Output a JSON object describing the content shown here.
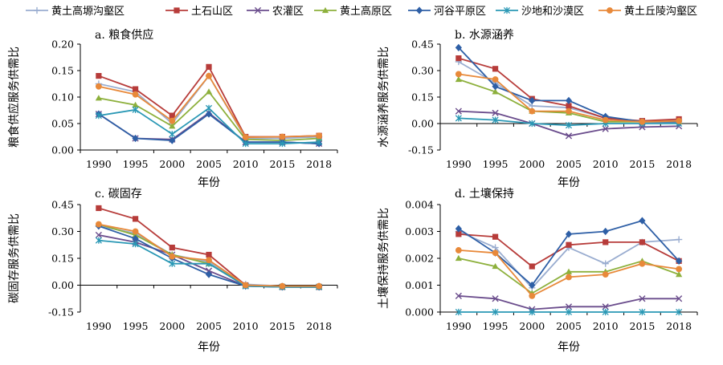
{
  "legend": [
    {
      "name": "黄土高塬沟壑区",
      "color": "#9aadd0",
      "marker": "plus"
    },
    {
      "name": "土石山区",
      "color": "#b73c3a",
      "marker": "square"
    },
    {
      "name": "农灌区",
      "color": "#6a4c8c",
      "marker": "x"
    },
    {
      "name": "黄土高原区",
      "color": "#8db03c",
      "marker": "triangle"
    },
    {
      "name": "河谷平原区",
      "color": "#2e5fa6",
      "marker": "diamond"
    },
    {
      "name": "沙地和沙漠区",
      "color": "#2a98b5",
      "marker": "star"
    },
    {
      "name": "黄土丘陵沟壑区",
      "color": "#e8893a",
      "marker": "circle"
    }
  ],
  "chart_data": [
    {
      "type": "line",
      "title": "a. 粮食供应",
      "xlabel": "年份",
      "ylabel": "粮食供应服务供需比",
      "x": [
        "1990",
        "1995",
        "2000",
        "2005",
        "2010",
        "2015",
        "2018"
      ],
      "ylim": [
        0,
        0.2
      ],
      "yticks": [
        "0.00",
        "0.05",
        "0.10",
        "0.15",
        "0.20"
      ],
      "series": [
        {
          "name": "黄土高塬沟壑区",
          "values": [
            0.125,
            0.11,
            0.05,
            0.14,
            0.022,
            0.022,
            0.025
          ]
        },
        {
          "name": "土石山区",
          "values": [
            0.14,
            0.115,
            0.065,
            0.157,
            0.025,
            0.025,
            0.027
          ]
        },
        {
          "name": "农灌区",
          "values": [
            0.068,
            0.022,
            0.02,
            0.07,
            0.015,
            0.015,
            0.012
          ]
        },
        {
          "name": "黄土高原区",
          "values": [
            0.098,
            0.085,
            0.045,
            0.11,
            0.02,
            0.018,
            0.022
          ]
        },
        {
          "name": "河谷平原区",
          "values": [
            0.068,
            0.022,
            0.018,
            0.068,
            0.015,
            0.015,
            0.012
          ]
        },
        {
          "name": "沙地和沙漠区",
          "values": [
            0.065,
            0.076,
            0.03,
            0.079,
            0.012,
            0.012,
            0.015
          ]
        },
        {
          "name": "黄土丘陵沟壑区",
          "values": [
            0.12,
            0.105,
            0.055,
            0.14,
            0.024,
            0.025,
            0.027
          ]
        }
      ]
    },
    {
      "type": "line",
      "title": "b. 水源涵养",
      "xlabel": "年份",
      "ylabel": "水源涵养服务供需比",
      "x": [
        "1990",
        "1995",
        "2000",
        "2005",
        "2010",
        "2015",
        "2018"
      ],
      "ylim": [
        -0.15,
        0.45
      ],
      "yticks": [
        "-0.15",
        "0.00",
        "0.15",
        "0.30",
        "0.45"
      ],
      "series": [
        {
          "name": "黄土高塬沟壑区",
          "values": [
            0.35,
            0.23,
            0.1,
            0.09,
            0.03,
            0.01,
            0.02
          ]
        },
        {
          "name": "土石山区",
          "values": [
            0.37,
            0.31,
            0.14,
            0.1,
            0.03,
            0.015,
            0.025
          ]
        },
        {
          "name": "农灌区",
          "values": [
            0.07,
            0.06,
            0.0,
            -0.07,
            -0.03,
            -0.02,
            -0.015
          ]
        },
        {
          "name": "黄土高原区",
          "values": [
            0.25,
            0.18,
            0.07,
            0.06,
            0.01,
            0.01,
            0.01
          ]
        },
        {
          "name": "河谷平原区",
          "values": [
            0.43,
            0.21,
            0.13,
            0.13,
            0.04,
            0.01,
            0.01
          ]
        },
        {
          "name": "沙地和沙漠区",
          "values": [
            0.03,
            0.02,
            0.0,
            -0.01,
            0.0,
            0.0,
            0.0
          ]
        },
        {
          "name": "黄土丘陵沟壑区",
          "values": [
            0.28,
            0.25,
            0.07,
            0.07,
            0.02,
            0.01,
            0.015
          ]
        }
      ]
    },
    {
      "type": "line",
      "title": "c. 碳固存",
      "xlabel": "年份",
      "ylabel": "碳固存服务供需比",
      "x": [
        "1990",
        "1995",
        "2000",
        "2005",
        "2010",
        "2015",
        "2018"
      ],
      "ylim": [
        -0.15,
        0.45
      ],
      "yticks": [
        "-0.15",
        "0.00",
        "0.15",
        "0.30",
        "0.45"
      ],
      "series": [
        {
          "name": "黄土高塬沟壑区",
          "values": [
            0.33,
            0.29,
            0.17,
            0.13,
            0.005,
            -0.005,
            -0.005
          ]
        },
        {
          "name": "土石山区",
          "values": [
            0.43,
            0.37,
            0.21,
            0.17,
            0.0,
            -0.01,
            -0.01
          ]
        },
        {
          "name": "农灌区",
          "values": [
            0.28,
            0.24,
            0.17,
            0.08,
            -0.005,
            -0.01,
            -0.01
          ]
        },
        {
          "name": "黄土高原区",
          "values": [
            0.34,
            0.28,
            0.17,
            0.12,
            0.0,
            -0.01,
            -0.01
          ]
        },
        {
          "name": "河谷平原区",
          "values": [
            0.33,
            0.26,
            0.15,
            0.06,
            -0.005,
            -0.01,
            -0.01
          ]
        },
        {
          "name": "沙地和沙漠区",
          "values": [
            0.25,
            0.23,
            0.12,
            0.12,
            -0.005,
            -0.01,
            -0.01
          ]
        },
        {
          "name": "黄土丘陵沟壑区",
          "values": [
            0.34,
            0.3,
            0.16,
            0.14,
            0.0,
            -0.005,
            -0.005
          ]
        }
      ]
    },
    {
      "type": "line",
      "title": "d. 土壤保持",
      "xlabel": "年份",
      "ylabel": "土壤保持服务供需比",
      "x": [
        "1990",
        "1995",
        "2000",
        "2005",
        "2010",
        "2015",
        "2018"
      ],
      "ylim": [
        0,
        0.004
      ],
      "yticks": [
        "0.000",
        "0.001",
        "0.002",
        "0.003",
        "0.004"
      ],
      "series": [
        {
          "name": "黄土高塬沟壑区",
          "values": [
            0.003,
            0.0024,
            0.0009,
            0.0024,
            0.0018,
            0.0026,
            0.0027
          ]
        },
        {
          "name": "土石山区",
          "values": [
            0.0029,
            0.0028,
            0.0017,
            0.0025,
            0.0026,
            0.0026,
            0.0019
          ]
        },
        {
          "name": "农灌区",
          "values": [
            0.0006,
            0.0005,
            0.0001,
            0.0002,
            0.0002,
            0.0005,
            0.0005
          ]
        },
        {
          "name": "黄土高原区",
          "values": [
            0.002,
            0.0017,
            0.0007,
            0.0015,
            0.0015,
            0.0019,
            0.0014
          ]
        },
        {
          "name": "河谷平原区",
          "values": [
            0.0031,
            0.0022,
            0.001,
            0.0029,
            0.003,
            0.0034,
            0.0019
          ]
        },
        {
          "name": "沙地和沙漠区",
          "values": [
            0.0,
            0.0,
            0.0,
            0.0,
            0.0,
            0.0,
            0.0
          ]
        },
        {
          "name": "黄土丘陵沟壑区",
          "values": [
            0.0023,
            0.0022,
            0.0006,
            0.0013,
            0.0014,
            0.0018,
            0.0016
          ]
        }
      ]
    }
  ]
}
